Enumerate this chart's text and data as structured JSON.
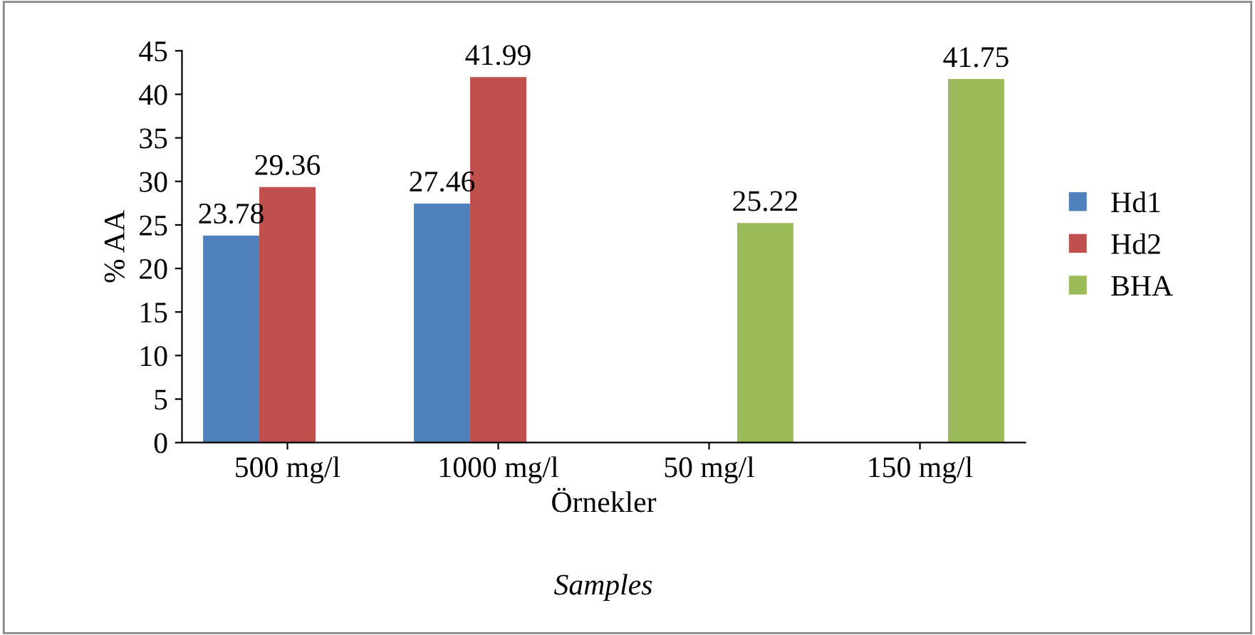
{
  "chart_data": {
    "type": "bar",
    "categories": [
      "500 mg/l",
      "1000 mg/l",
      "50 mg/l",
      "150 mg/l"
    ],
    "series": [
      {
        "name": "Hd1",
        "color": "#4f81bd",
        "values": [
          23.78,
          27.46,
          null,
          null
        ]
      },
      {
        "name": "Hd2",
        "color": "#c0504d",
        "values": [
          29.36,
          41.99,
          null,
          null
        ]
      },
      {
        "name": "BHA",
        "color": "#9bbb59",
        "values": [
          null,
          null,
          25.22,
          41.75
        ]
      }
    ],
    "xlabel": "Örnekler",
    "ylabel": "% AA",
    "annotations": [
      "Samples"
    ],
    "ylim": [
      0,
      45
    ],
    "yticks": [
      0,
      5,
      10,
      15,
      20,
      25,
      30,
      35,
      40,
      45
    ],
    "data_labels": true,
    "legend": "right",
    "grid": false
  }
}
